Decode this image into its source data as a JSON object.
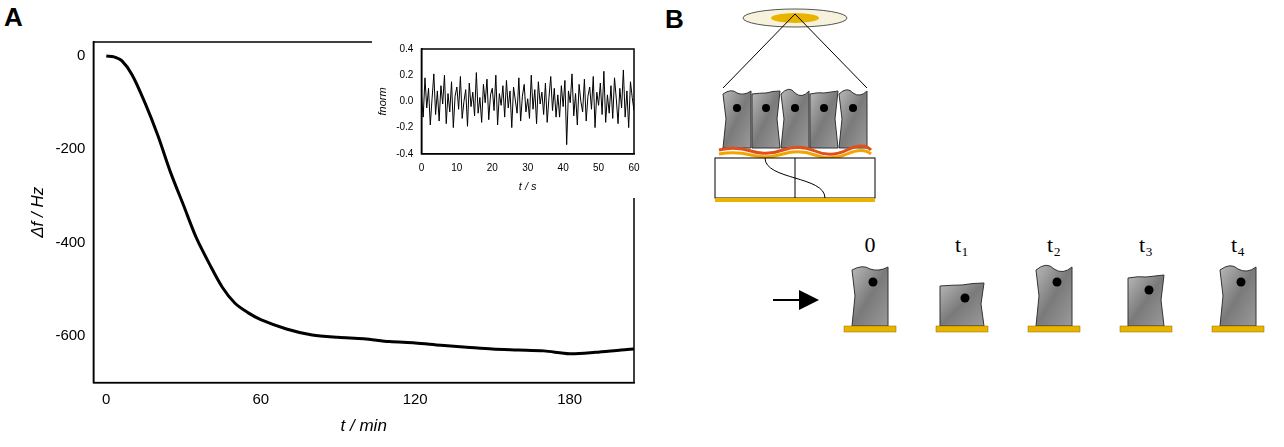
{
  "panels": [
    "A",
    "B"
  ],
  "chart_data": [
    {
      "type": "line",
      "x_label": "t / min",
      "y_label": "Δf / Hz",
      "x": [
        0,
        3,
        6,
        10,
        15,
        20,
        25,
        30,
        35,
        40,
        45,
        50,
        55,
        60,
        70,
        80,
        90,
        100,
        110,
        120,
        130,
        140,
        150,
        160,
        170,
        180,
        190,
        200,
        205
      ],
      "values": [
        0,
        -2,
        -10,
        -40,
        -100,
        -170,
        -250,
        -320,
        -390,
        -445,
        -495,
        -530,
        -550,
        -565,
        -585,
        -598,
        -603,
        -606,
        -612,
        -615,
        -620,
        -624,
        -628,
        -630,
        -632,
        -638,
        -635,
        -630,
        -628
      ],
      "color": "#000000",
      "xlim": [
        -5,
        205
      ],
      "xticks": [
        0,
        60,
        120,
        180
      ],
      "ylim": [
        -700,
        30
      ],
      "yticks": [
        -600,
        -400,
        -200,
        0
      ],
      "grid": false
    },
    {
      "type": "line",
      "x_label": "t / s",
      "y_label": "fnorm",
      "x": [
        0,
        0.5,
        1,
        1.5,
        2,
        2.5,
        3,
        3.5,
        4,
        4.5,
        5,
        5.5,
        6,
        6.5,
        7,
        7.5,
        8,
        8.5,
        9,
        9.5,
        10,
        10.5,
        11,
        11.5,
        12,
        12.5,
        13,
        13.5,
        14,
        14.5,
        15,
        15.5,
        16,
        16.5,
        17,
        17.5,
        18,
        18.5,
        19,
        19.5,
        20,
        20.5,
        21,
        21.5,
        22,
        22.5,
        23,
        23.5,
        24,
        24.5,
        25,
        25.5,
        26,
        26.5,
        27,
        27.5,
        28,
        28.5,
        29,
        29.5,
        30,
        30.5,
        31,
        31.5,
        32,
        32.5,
        33,
        33.5,
        34,
        34.5,
        35,
        35.5,
        36,
        36.5,
        37,
        37.5,
        38,
        38.5,
        39,
        39.5,
        40,
        40.5,
        41,
        41.5,
        42,
        42.5,
        43,
        43.5,
        44,
        44.5,
        45,
        45.5,
        46,
        46.5,
        47,
        47.5,
        48,
        48.5,
        49,
        49.5,
        50,
        50.5,
        51,
        51.5,
        52,
        52.5,
        53,
        53.5,
        54,
        54.5,
        55,
        55.5,
        56,
        56.5,
        57,
        57.5,
        58,
        58.5,
        59,
        59.5,
        60
      ],
      "values": [
        0.05,
        -0.12,
        0.18,
        -0.05,
        0.1,
        -0.18,
        0.02,
        0.21,
        -0.1,
        0.08,
        -0.15,
        0.12,
        -0.02,
        0.2,
        -0.17,
        0.06,
        -0.08,
        0.15,
        -0.2,
        0.04,
        0.11,
        -0.06,
        0.19,
        -0.13,
        0.0,
        0.09,
        -0.19,
        0.14,
        -0.04,
        0.07,
        -0.11,
        0.22,
        -0.09,
        0.03,
        -0.16,
        0.13,
        -0.01,
        0.17,
        -0.14,
        0.05,
        0.1,
        -0.07,
        0.2,
        -0.18,
        0.06,
        -0.03,
        0.12,
        -0.12,
        0.16,
        -0.05,
        0.08,
        -0.2,
        0.11,
        0.01,
        -0.09,
        0.18,
        -0.15,
        0.04,
        0.13,
        -0.08,
        0.02,
        -0.13,
        0.2,
        -0.06,
        0.09,
        -0.17,
        0.15,
        -0.02,
        0.07,
        -0.1,
        0.14,
        -0.16,
        0.03,
        0.19,
        -0.07,
        0.1,
        -0.12,
        0.05,
        -0.12,
        0.12,
        -0.04,
        0.16,
        -0.33,
        0.08,
        -0.01,
        0.21,
        -0.11,
        0.06,
        -0.18,
        0.13,
        0.0,
        -0.08,
        0.17,
        -0.15,
        0.04,
        0.11,
        -0.06,
        0.19,
        -0.2,
        0.07,
        -0.03,
        0.14,
        -0.1,
        0.23,
        -0.16,
        0.05,
        -0.09,
        0.12,
        -0.13,
        0.18,
        0.02,
        -0.17,
        0.1,
        -0.05,
        0.24,
        -0.12,
        0.08,
        -0.2,
        0.15,
        0.03,
        -0.07
      ],
      "color": "#000000",
      "xlim": [
        0,
        60
      ],
      "xticks": [
        0,
        10,
        20,
        30,
        40,
        50,
        60
      ],
      "ylim": [
        -0.4,
        0.4
      ],
      "yticks": [
        -0.4,
        -0.2,
        {
          "value": 0,
          "label": "0.0"
        },
        0.2,
        0.4
      ],
      "grid": false
    }
  ],
  "diagram": {
    "time_labels": [
      "0",
      "t₁",
      "t₂",
      "t₃",
      "t₄"
    ]
  }
}
